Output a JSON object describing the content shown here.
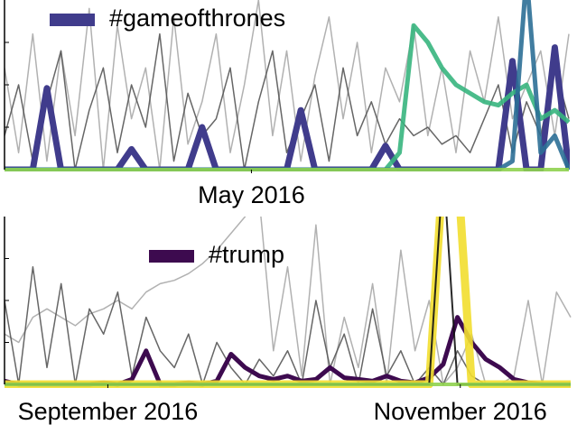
{
  "chart_data": [
    {
      "type": "line",
      "xlim": [
        0,
        40
      ],
      "ylim": [
        0,
        100
      ],
      "xticks": [
        {
          "value": 17.5,
          "label": "May 2016"
        }
      ],
      "series": [
        {
          "color": "#a8a8a8",
          "width": 1.5,
          "values": [
            60,
            10,
            80,
            5,
            70,
            20,
            95,
            0,
            85,
            30,
            60,
            0,
            90,
            15,
            40,
            80,
            10,
            50,
            100,
            20,
            70,
            5,
            55,
            90,
            30,
            75,
            10,
            60,
            40,
            85,
            20,
            60,
            10,
            70,
            40,
            90,
            30,
            50,
            70,
            20,
            80
          ]
        },
        {
          "color": "#555555",
          "width": 1.5,
          "values": [
            20,
            50,
            5,
            40,
            70,
            0,
            35,
            60,
            10,
            50,
            25,
            80,
            5,
            45,
            20,
            30,
            60,
            0,
            40,
            70,
            10,
            30,
            50,
            5,
            60,
            20,
            40,
            15,
            30,
            20,
            25,
            15,
            20,
            10,
            30,
            50,
            10,
            40,
            20,
            60,
            30
          ]
        },
        {
          "name": "#gameofthrones",
          "color": "#403c8c",
          "width": 7,
          "values": [
            0,
            0,
            0,
            48,
            0,
            0,
            0,
            0,
            0,
            12,
            0,
            0,
            0,
            0,
            25,
            0,
            0,
            0,
            0,
            0,
            0,
            35,
            0,
            0,
            0,
            0,
            0,
            14,
            0,
            0,
            0,
            0,
            0,
            0,
            0,
            0,
            64,
            0,
            0,
            72,
            0
          ]
        },
        {
          "color": "#37b57e",
          "width": 5,
          "values": [
            0,
            0,
            0,
            0,
            0,
            0,
            0,
            0,
            0,
            0,
            0,
            0,
            0,
            0,
            0,
            0,
            0,
            0,
            0,
            0,
            0,
            0,
            0,
            0,
            0,
            0,
            0,
            0,
            10,
            85,
            75,
            60,
            50,
            45,
            40,
            38,
            45,
            50,
            30,
            35,
            28
          ]
        },
        {
          "color": "#2c6f96",
          "width": 5,
          "values": [
            0,
            0,
            0,
            0,
            0,
            0,
            0,
            0,
            0,
            0,
            0,
            0,
            0,
            0,
            0,
            0,
            0,
            0,
            0,
            0,
            0,
            0,
            0,
            0,
            0,
            0,
            0,
            0,
            0,
            0,
            0,
            0,
            0,
            0,
            0,
            0,
            5,
            115,
            10,
            20,
            0
          ]
        },
        {
          "color": "#8fd14f",
          "width": 4,
          "values": [
            0,
            0,
            0,
            0,
            0,
            0,
            0,
            0,
            0,
            0,
            0,
            0,
            0,
            0,
            0,
            0,
            0,
            0,
            0,
            0,
            0,
            0,
            0,
            0,
            0,
            0,
            0,
            0,
            0,
            0,
            0,
            0,
            0,
            0,
            0,
            0,
            0,
            0,
            0,
            0,
            0
          ]
        }
      ]
    },
    {
      "type": "line",
      "xlim": [
        0,
        40
      ],
      "ylim": [
        0,
        100
      ],
      "xticks": [
        {
          "value": 7.3,
          "label": "September 2016"
        },
        {
          "value": 32.2,
          "label": "November 2016"
        }
      ],
      "series": [
        {
          "color": "#a8a8a8",
          "width": 1.5,
          "values": [
            30,
            25,
            40,
            45,
            40,
            35,
            42,
            45,
            50,
            45,
            55,
            60,
            62,
            66,
            72,
            80,
            90,
            100,
            110,
            20,
            70,
            5,
            95,
            0,
            40,
            10,
            60,
            0,
            80,
            20,
            50,
            0,
            10,
            30,
            0,
            0,
            5,
            50,
            0,
            55,
            40
          ]
        },
        {
          "color": "#555555",
          "width": 1.5,
          "values": [
            50,
            0,
            70,
            10,
            60,
            0,
            45,
            30,
            55,
            5,
            40,
            20,
            10,
            30,
            0,
            25,
            10,
            0,
            15,
            5,
            20,
            0,
            50,
            10,
            30,
            0,
            45,
            5,
            20,
            0,
            10,
            0,
            20,
            5,
            0,
            0,
            0,
            0,
            0,
            0,
            0
          ]
        },
        {
          "name": "#trump",
          "color": "#3d0a4f",
          "width": 5,
          "values": [
            2,
            0,
            0,
            0,
            0,
            0,
            0,
            1,
            0,
            3,
            20,
            0,
            0,
            1,
            0,
            2,
            18,
            10,
            5,
            3,
            5,
            2,
            3,
            10,
            4,
            3,
            2,
            5,
            2,
            1,
            4,
            12,
            40,
            25,
            15,
            10,
            3,
            1,
            0,
            0,
            0
          ]
        },
        {
          "color": "#f2de2f",
          "width": 9,
          "values": [
            0,
            0,
            0,
            0,
            0,
            0,
            0,
            0,
            0,
            0,
            0,
            0,
            0,
            0,
            0,
            0,
            0,
            0,
            0,
            0,
            0,
            0,
            0,
            0,
            0,
            0,
            0,
            0,
            0,
            0,
            0,
            130,
            130,
            0,
            0,
            0,
            0,
            0,
            0,
            0,
            0
          ]
        },
        {
          "color": "#111111",
          "width": 2,
          "values": [
            0,
            0,
            0,
            0,
            0,
            0,
            0,
            0,
            0,
            0,
            0,
            0,
            0,
            0,
            0,
            0,
            0,
            0,
            0,
            0,
            0,
            0,
            0,
            0,
            0,
            0,
            0,
            0,
            0,
            0,
            0,
            130,
            0,
            0,
            0,
            0,
            0,
            0,
            0,
            0,
            0
          ]
        },
        {
          "color": "#8fd14f",
          "width": 4,
          "values": [
            0,
            0,
            0,
            0,
            0,
            0,
            0,
            0,
            0,
            0,
            0,
            0,
            0,
            0,
            0,
            0,
            0,
            0,
            0,
            0,
            0,
            0,
            0,
            0,
            0,
            0,
            0,
            0,
            0,
            0,
            0,
            0,
            0,
            0,
            0,
            0,
            0,
            0,
            0,
            0,
            0
          ]
        }
      ]
    }
  ]
}
